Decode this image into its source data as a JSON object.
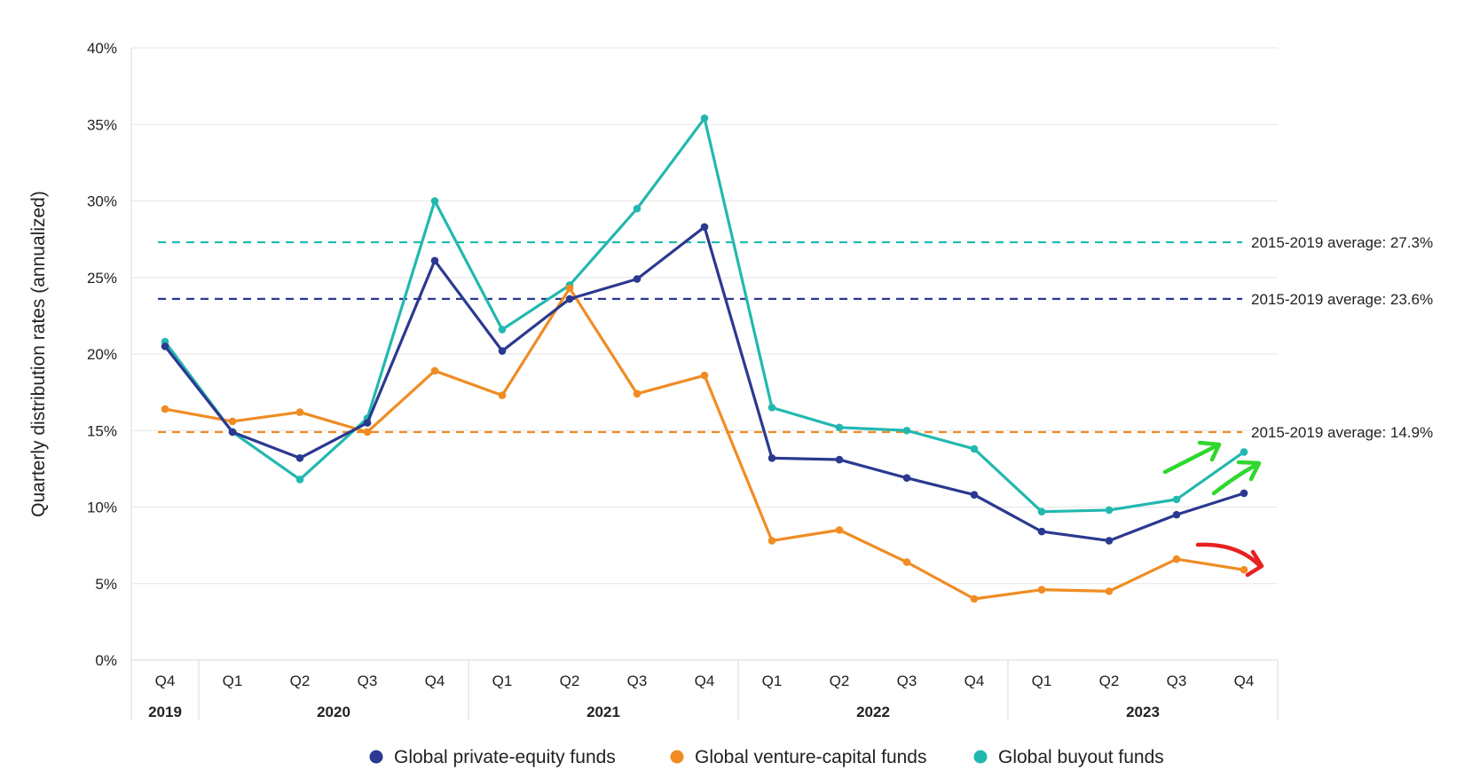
{
  "chart_data": {
    "type": "line",
    "ylabel": "Quarterly distribution rates (annualized)",
    "ylim": [
      0,
      40
    ],
    "y_ticks": [
      "0%",
      "5%",
      "10%",
      "15%",
      "20%",
      "25%",
      "30%",
      "35%",
      "40%"
    ],
    "grid": true,
    "categories": [
      "Q4",
      "Q1",
      "Q2",
      "Q3",
      "Q4",
      "Q1",
      "Q2",
      "Q3",
      "Q4",
      "Q1",
      "Q2",
      "Q3",
      "Q4",
      "Q1",
      "Q2",
      "Q3",
      "Q4"
    ],
    "year_groups": [
      {
        "label": "2019",
        "span": 1
      },
      {
        "label": "2020",
        "span": 4
      },
      {
        "label": "2021",
        "span": 4
      },
      {
        "label": "2022",
        "span": 4
      },
      {
        "label": "2023",
        "span": 4
      }
    ],
    "series": [
      {
        "name": "Global private-equity funds",
        "color": "#2b3990",
        "values": [
          20.5,
          14.9,
          13.2,
          15.5,
          26.1,
          20.2,
          23.6,
          24.9,
          28.3,
          13.2,
          13.1,
          11.9,
          10.8,
          8.4,
          7.8,
          9.5,
          10.9
        ]
      },
      {
        "name": "Global venture-capital funds",
        "color": "#f08c23",
        "values": [
          16.4,
          15.6,
          16.2,
          14.9,
          18.9,
          17.3,
          24.3,
          17.4,
          18.6,
          7.8,
          8.5,
          6.4,
          4.0,
          4.6,
          4.5,
          6.6,
          5.9
        ]
      },
      {
        "name": "Global buyout funds",
        "color": "#22b8b0",
        "values": [
          20.8,
          14.9,
          11.8,
          15.8,
          30.0,
          21.6,
          24.5,
          29.5,
          35.4,
          16.5,
          15.2,
          15.0,
          13.8,
          9.7,
          9.8,
          10.5,
          13.6
        ]
      }
    ],
    "reference_lines": [
      {
        "value": 27.3,
        "color": "#22b8b0",
        "label": "2015-2019 average: 27.3%"
      },
      {
        "value": 23.6,
        "color": "#2b3990",
        "label": "2015-2019 average: 23.6%"
      },
      {
        "value": 14.9,
        "color": "#f08c23",
        "label": "2015-2019 average: 14.9%"
      }
    ],
    "legend_position": "bottom",
    "annotations": [
      {
        "type": "arrow-up",
        "color": "#2ed82e"
      },
      {
        "type": "arrow-up",
        "color": "#2ed82e"
      },
      {
        "type": "arrow-down-right",
        "color": "#e82020"
      }
    ]
  }
}
